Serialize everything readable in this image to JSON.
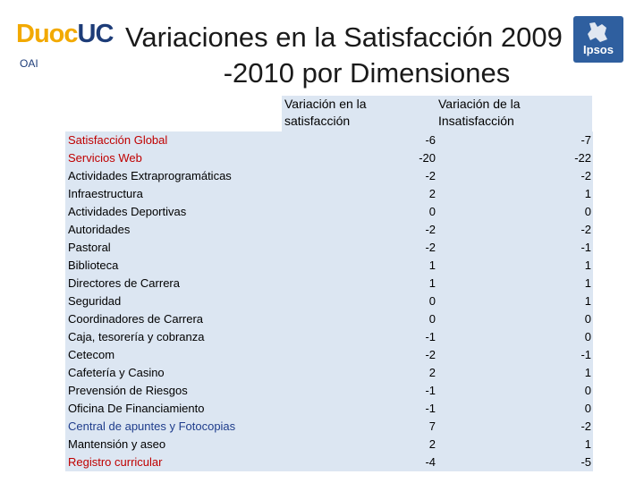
{
  "header": {
    "logo_part1": "Duoc",
    "logo_part2": "UC",
    "oai_label": "OAI",
    "title_line1": "Variaciones en la Satisfacción 2009",
    "title_line2": "-2010 por Dimensiones",
    "ipsos_label": "Ipsos"
  },
  "colors": {
    "table_background": "#dce6f2",
    "highlight_red": "#c00000",
    "highlight_blue": "#1f3d8c",
    "duoc_orange": "#f2a900",
    "duoc_navy": "#1d3c78",
    "ipsos_blue": "#2f5f9f"
  },
  "table": {
    "col1_header": "Variación en la satisfacción",
    "col2_header": "Variación de la Insatisfacción",
    "rows": [
      {
        "label": "Satisfacción Global",
        "satisfaccion": "-6",
        "insatisfaccion": "-7",
        "color": "red"
      },
      {
        "label": "Servicios Web",
        "satisfaccion": "-20",
        "insatisfaccion": "-22",
        "color": "red"
      },
      {
        "label": "Actividades Extraprogramáticas",
        "satisfaccion": "-2",
        "insatisfaccion": "-2",
        "color": "default"
      },
      {
        "label": "Infraestructura",
        "satisfaccion": "2",
        "insatisfaccion": "1",
        "color": "default"
      },
      {
        "label": "Actividades Deportivas",
        "satisfaccion": "0",
        "insatisfaccion": "0",
        "color": "default"
      },
      {
        "label": "Autoridades",
        "satisfaccion": "-2",
        "insatisfaccion": "-2",
        "color": "default"
      },
      {
        "label": "Pastoral",
        "satisfaccion": "-2",
        "insatisfaccion": "-1",
        "color": "default"
      },
      {
        "label": "Biblioteca",
        "satisfaccion": "1",
        "insatisfaccion": "1",
        "color": "default"
      },
      {
        "label": "Directores de Carrera",
        "satisfaccion": "1",
        "insatisfaccion": "1",
        "color": "default"
      },
      {
        "label": "Seguridad",
        "satisfaccion": "0",
        "insatisfaccion": "1",
        "color": "default"
      },
      {
        "label": "Coordinadores de Carrera",
        "satisfaccion": "0",
        "insatisfaccion": "0",
        "color": "default"
      },
      {
        "label": "Caja, tesorería y cobranza",
        "satisfaccion": "-1",
        "insatisfaccion": "0",
        "color": "default"
      },
      {
        "label": "Cetecom",
        "satisfaccion": "-2",
        "insatisfaccion": "-1",
        "color": "default"
      },
      {
        "label": "Cafetería y Casino",
        "satisfaccion": "2",
        "insatisfaccion": "1",
        "color": "default"
      },
      {
        "label": "Prevensión de Riesgos",
        "satisfaccion": "-1",
        "insatisfaccion": "0",
        "color": "default"
      },
      {
        "label": "Oficina De Financiamiento",
        "satisfaccion": "-1",
        "insatisfaccion": "0",
        "color": "default"
      },
      {
        "label": "Central de apuntes y Fotocopias",
        "satisfaccion": "7",
        "insatisfaccion": "-2",
        "color": "blue"
      },
      {
        "label": "Mantensión y aseo",
        "satisfaccion": "2",
        "insatisfaccion": "1",
        "color": "default"
      },
      {
        "label": "Registro curricular",
        "satisfaccion": "-4",
        "insatisfaccion": "-5",
        "color": "red"
      }
    ]
  }
}
